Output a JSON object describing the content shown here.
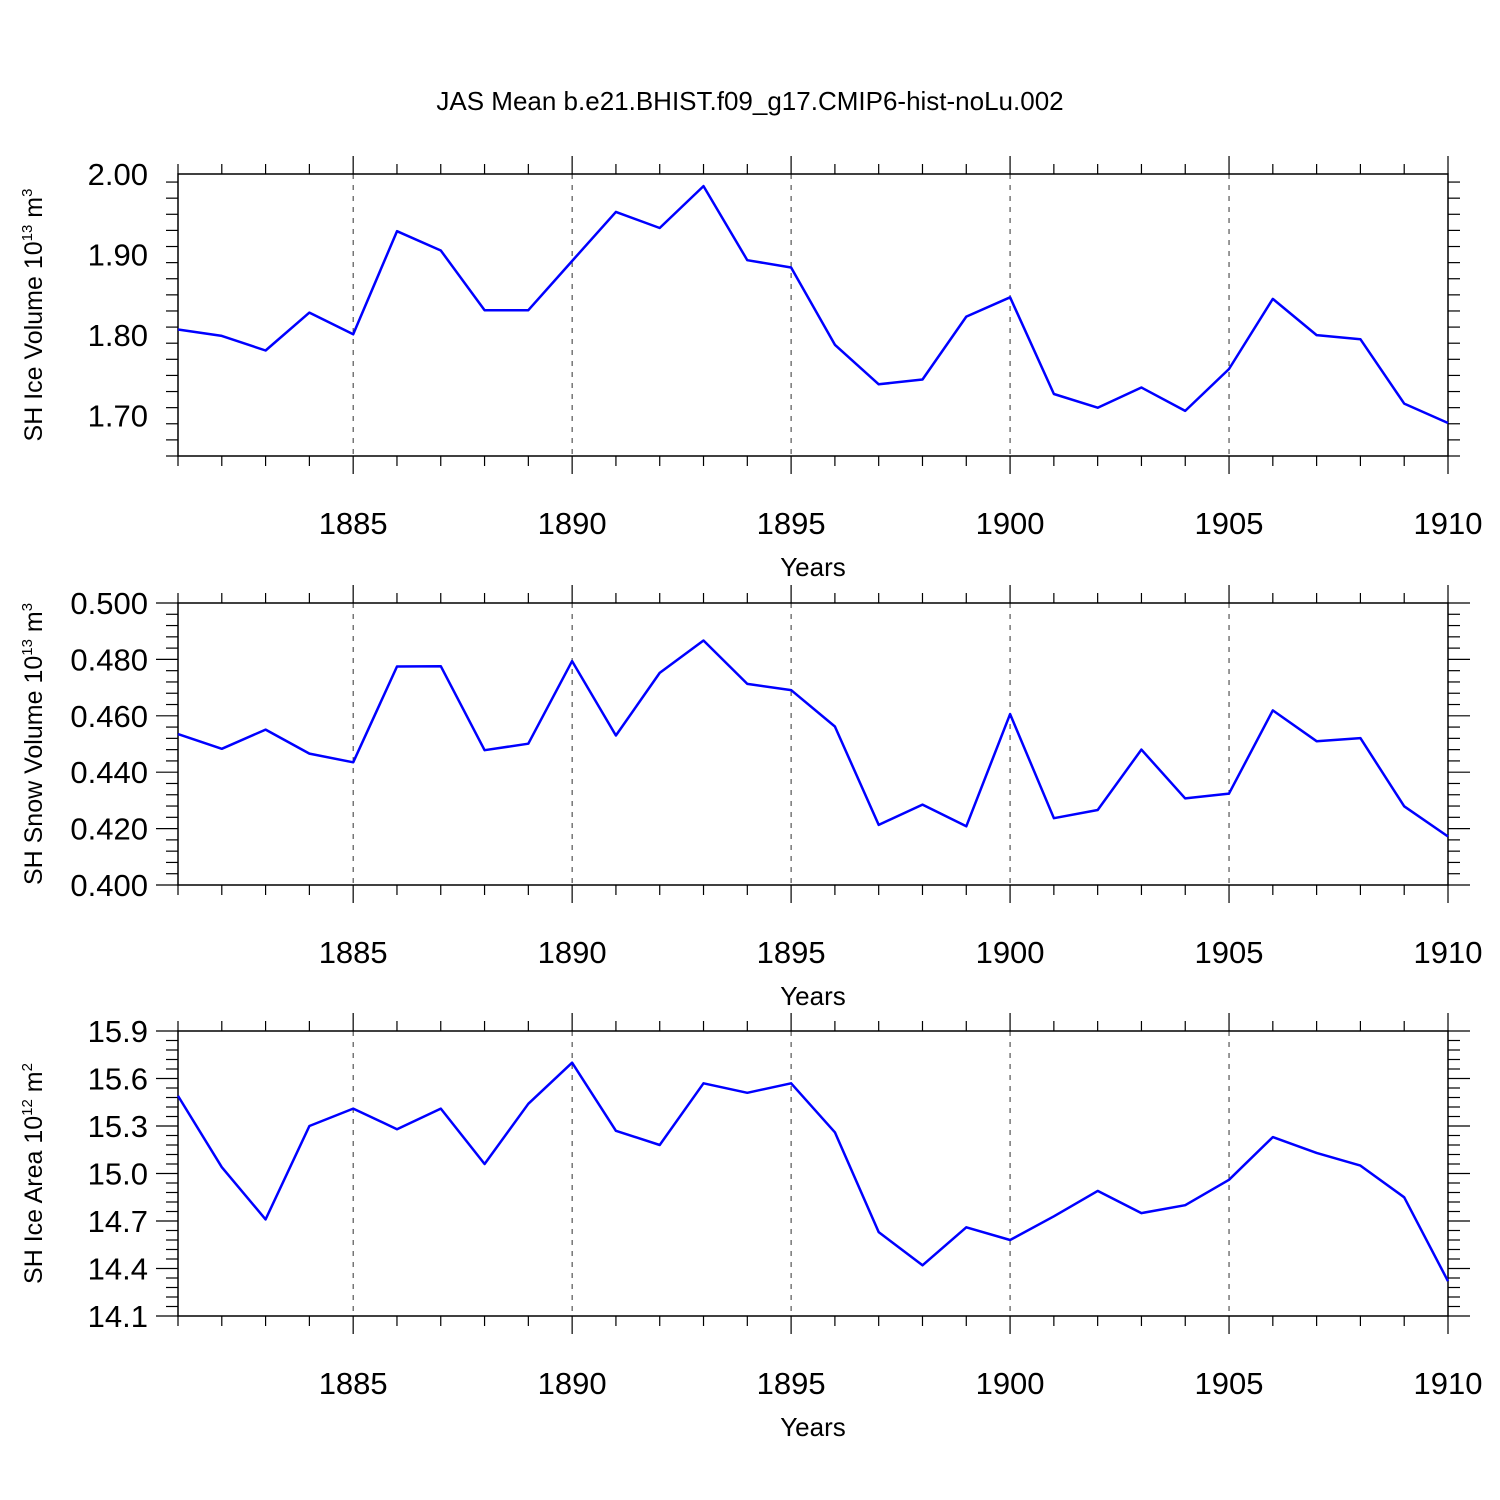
{
  "title": "JAS Mean b.e21.BHIST.f09_g17.CMIP6-hist-noLu.002",
  "chart_data": [
    {
      "type": "line",
      "ylabel": "SH Ice Volume 10",
      "ylabel_sup": "13",
      "ylabel_unit": " m",
      "ylabel_unit_sup": "3",
      "xlabel": "Years",
      "xlim": [
        1881,
        1910
      ],
      "ylim": [
        1.65,
        2.0
      ],
      "yticks": [
        "1.70",
        "1.80",
        "1.90",
        "2.00"
      ],
      "ytick_values": [
        1.7,
        1.8,
        1.9,
        2.0
      ],
      "xticks": [
        "1885",
        "1890",
        "1895",
        "1900",
        "1905",
        "1910"
      ],
      "xtick_values": [
        1885,
        1890,
        1895,
        1900,
        1905,
        1910
      ],
      "grid": "vertical dashed at major x ticks",
      "color": "#0000ff",
      "x": [
        1881,
        1882,
        1883,
        1884,
        1885,
        1886,
        1887,
        1888,
        1889,
        1890,
        1891,
        1892,
        1893,
        1894,
        1895,
        1896,
        1897,
        1898,
        1899,
        1900,
        1901,
        1902,
        1903,
        1904,
        1905,
        1906,
        1907,
        1908,
        1909,
        1910
      ],
      "values": [
        1.807,
        1.799,
        1.781,
        1.828,
        1.801,
        1.929,
        1.905,
        1.831,
        1.831,
        1.892,
        1.953,
        1.933,
        1.985,
        1.893,
        1.884,
        1.788,
        1.739,
        1.745,
        1.823,
        1.847,
        1.727,
        1.71,
        1.735,
        1.706,
        1.758,
        1.845,
        1.8,
        1.795,
        1.715,
        1.691
      ]
    },
    {
      "type": "line",
      "ylabel": "SH Snow Volume 10",
      "ylabel_sup": "13",
      "ylabel_unit": " m",
      "ylabel_unit_sup": "3",
      "xlabel": "Years",
      "xlim": [
        1881,
        1910
      ],
      "ylim": [
        0.4,
        0.5
      ],
      "yticks": [
        "0.400",
        "0.420",
        "0.440",
        "0.460",
        "0.480",
        "0.500"
      ],
      "ytick_values": [
        0.4,
        0.42,
        0.44,
        0.46,
        0.48,
        0.5
      ],
      "xticks": [
        "1885",
        "1890",
        "1895",
        "1900",
        "1905",
        "1910"
      ],
      "xtick_values": [
        1885,
        1890,
        1895,
        1900,
        1905,
        1910
      ],
      "grid": "vertical dashed at major x ticks",
      "color": "#0000ff",
      "x": [
        1881,
        1882,
        1883,
        1884,
        1885,
        1886,
        1887,
        1888,
        1889,
        1890,
        1891,
        1892,
        1893,
        1894,
        1895,
        1896,
        1897,
        1898,
        1899,
        1900,
        1901,
        1902,
        1903,
        1904,
        1905,
        1906,
        1907,
        1908,
        1909,
        1910
      ],
      "values": [
        0.4535,
        0.4483,
        0.4551,
        0.4466,
        0.4435,
        0.4775,
        0.4776,
        0.4478,
        0.4501,
        0.4794,
        0.453,
        0.4752,
        0.4867,
        0.4713,
        0.4691,
        0.4562,
        0.4213,
        0.4285,
        0.4208,
        0.4606,
        0.4237,
        0.4266,
        0.448,
        0.4307,
        0.4324,
        0.4619,
        0.451,
        0.4521,
        0.4279,
        0.4172
      ]
    },
    {
      "type": "line",
      "ylabel": "SH Ice Area 10",
      "ylabel_sup": "12",
      "ylabel_unit": " m",
      "ylabel_unit_sup": "2",
      "xlabel": "Years",
      "xlim": [
        1881,
        1910
      ],
      "ylim": [
        14.1,
        15.9
      ],
      "yticks": [
        "14.1",
        "14.4",
        "14.7",
        "15.0",
        "15.3",
        "15.6",
        "15.9"
      ],
      "ytick_values": [
        14.1,
        14.4,
        14.7,
        15.0,
        15.3,
        15.6,
        15.9
      ],
      "xticks": [
        "1885",
        "1890",
        "1895",
        "1900",
        "1905",
        "1910"
      ],
      "xtick_values": [
        1885,
        1890,
        1895,
        1900,
        1905,
        1910
      ],
      "grid": "vertical dashed at major x ticks",
      "color": "#0000ff",
      "x": [
        1881,
        1882,
        1883,
        1884,
        1885,
        1886,
        1887,
        1888,
        1889,
        1890,
        1891,
        1892,
        1893,
        1894,
        1895,
        1896,
        1897,
        1898,
        1899,
        1900,
        1901,
        1902,
        1903,
        1904,
        1905,
        1906,
        1907,
        1908,
        1909,
        1910
      ],
      "values": [
        15.49,
        15.04,
        14.71,
        15.3,
        15.41,
        15.28,
        15.41,
        15.06,
        15.44,
        15.7,
        15.27,
        15.18,
        15.57,
        15.51,
        15.57,
        15.26,
        14.63,
        14.42,
        14.66,
        14.58,
        14.73,
        14.89,
        14.75,
        14.8,
        14.96,
        15.23,
        15.13,
        15.05,
        14.85,
        14.32
      ]
    }
  ]
}
